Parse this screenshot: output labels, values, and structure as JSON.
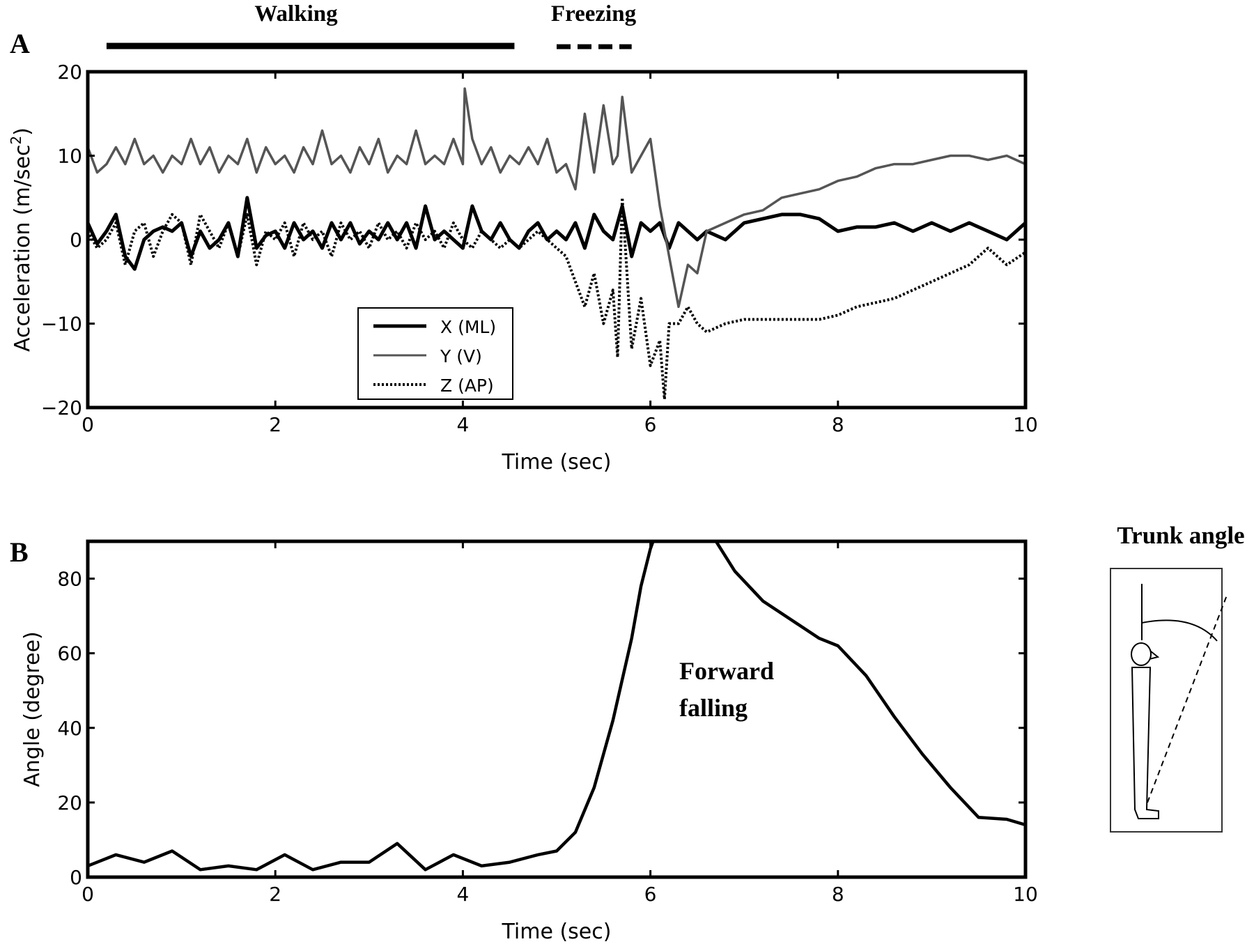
{
  "figure": {
    "phase_labels": {
      "walking": "Walking",
      "freezing": "Freezing"
    },
    "trunk_angle_label": "Trunk angle",
    "annotation": {
      "line1": "Forward",
      "line2": "falling"
    }
  },
  "chart_data": [
    {
      "panel": "A",
      "type": "line",
      "xlabel": "Time (sec)",
      "ylabel": "Acceleration (m/sec",
      "ylabel_superscript": "2",
      "ylabel_close": ")",
      "xlim": [
        0,
        10
      ],
      "ylim": [
        -20,
        20
      ],
      "xticks": [
        0,
        2,
        4,
        6,
        8,
        10
      ],
      "yticks": [
        -20,
        -10,
        0,
        10,
        20
      ],
      "grid": false,
      "legend_position": "bottom-center",
      "phases": [
        {
          "name": "Walking",
          "start": 0.2,
          "end": 4.55,
          "style": "solid"
        },
        {
          "name": "Freezing",
          "start": 5.0,
          "end": 5.8,
          "style": "dashed"
        }
      ],
      "series": [
        {
          "name": "X (ML)",
          "color": "#000000",
          "style": "solid-thick",
          "x": [
            0,
            0.1,
            0.2,
            0.3,
            0.4,
            0.5,
            0.6,
            0.7,
            0.8,
            0.9,
            1.0,
            1.1,
            1.2,
            1.3,
            1.4,
            1.5,
            1.6,
            1.7,
            1.8,
            1.9,
            2.0,
            2.1,
            2.2,
            2.3,
            2.4,
            2.5,
            2.6,
            2.7,
            2.8,
            2.9,
            3.0,
            3.1,
            3.2,
            3.3,
            3.4,
            3.5,
            3.6,
            3.7,
            3.8,
            3.9,
            4.0,
            4.1,
            4.2,
            4.3,
            4.4,
            4.5,
            4.6,
            4.7,
            4.8,
            4.9,
            5.0,
            5.1,
            5.2,
            5.3,
            5.4,
            5.5,
            5.6,
            5.7,
            5.8,
            5.9,
            6.0,
            6.1,
            6.2,
            6.3,
            6.4,
            6.5,
            6.6,
            6.8,
            7.0,
            7.2,
            7.4,
            7.6,
            7.8,
            8.0,
            8.2,
            8.4,
            8.6,
            8.8,
            9.0,
            9.2,
            9.4,
            9.6,
            9.8,
            10.0
          ],
          "values": [
            2,
            -0.5,
            1,
            3,
            -2,
            -3.5,
            0,
            1,
            1.5,
            1,
            2,
            -2,
            1,
            -1,
            0,
            2,
            -2,
            5,
            -1,
            0.5,
            1,
            -1,
            2,
            0,
            1,
            -1,
            2,
            0,
            2,
            -0.5,
            1,
            0,
            2,
            0,
            2,
            -1,
            4,
            0,
            1,
            0,
            -1,
            4,
            1,
            0,
            2,
            0,
            -1,
            1,
            2,
            0,
            1,
            0,
            2,
            -1,
            3,
            1,
            0,
            4,
            -2,
            2,
            1,
            2,
            -1,
            2,
            1,
            0,
            1,
            0,
            2,
            2.5,
            3,
            3,
            2.5,
            1,
            1.5,
            1.5,
            2,
            1,
            2,
            1,
            2,
            1,
            0,
            2
          ]
        },
        {
          "name": "Y (V)",
          "color": "#555555",
          "style": "solid",
          "x": [
            0,
            0.1,
            0.2,
            0.3,
            0.4,
            0.5,
            0.6,
            0.7,
            0.8,
            0.9,
            1.0,
            1.1,
            1.2,
            1.3,
            1.4,
            1.5,
            1.6,
            1.7,
            1.8,
            1.9,
            2.0,
            2.1,
            2.2,
            2.3,
            2.4,
            2.5,
            2.6,
            2.7,
            2.8,
            2.9,
            3.0,
            3.1,
            3.2,
            3.3,
            3.4,
            3.5,
            3.6,
            3.7,
            3.8,
            3.9,
            4.0,
            4.02,
            4.1,
            4.2,
            4.3,
            4.4,
            4.5,
            4.6,
            4.7,
            4.8,
            4.9,
            5.0,
            5.1,
            5.2,
            5.3,
            5.4,
            5.5,
            5.6,
            5.65,
            5.7,
            5.8,
            5.9,
            6.0,
            6.1,
            6.2,
            6.3,
            6.4,
            6.5,
            6.6,
            6.8,
            7.0,
            7.2,
            7.4,
            7.6,
            7.8,
            8.0,
            8.2,
            8.4,
            8.6,
            8.8,
            9.0,
            9.2,
            9.4,
            9.6,
            9.8,
            10.0
          ],
          "values": [
            11,
            8,
            9,
            11,
            9,
            12,
            9,
            10,
            8,
            10,
            9,
            12,
            9,
            11,
            8,
            10,
            9,
            12,
            8,
            11,
            9,
            10,
            8,
            11,
            9,
            13,
            9,
            10,
            8,
            11,
            9,
            12,
            8,
            10,
            9,
            13,
            9,
            10,
            9,
            12,
            9,
            18,
            12,
            9,
            11,
            8,
            10,
            9,
            11,
            9,
            12,
            8,
            9,
            6,
            15,
            8,
            16,
            9,
            10,
            17,
            8,
            10,
            12,
            4,
            -2,
            -8,
            -3,
            -4,
            1,
            2,
            3,
            3.5,
            5,
            5.5,
            6,
            7,
            7.5,
            8.5,
            9,
            9,
            9.5,
            10,
            10,
            9.5,
            10,
            9
          ]
        },
        {
          "name": "Z (AP)",
          "color": "#000000",
          "style": "dotted",
          "x": [
            0,
            0.1,
            0.2,
            0.3,
            0.4,
            0.5,
            0.6,
            0.7,
            0.8,
            0.9,
            1.0,
            1.1,
            1.2,
            1.3,
            1.4,
            1.5,
            1.6,
            1.7,
            1.8,
            1.9,
            2.0,
            2.1,
            2.2,
            2.3,
            2.4,
            2.5,
            2.6,
            2.7,
            2.8,
            2.9,
            3.0,
            3.1,
            3.2,
            3.3,
            3.4,
            3.5,
            3.6,
            3.7,
            3.8,
            3.9,
            4.0,
            4.1,
            4.2,
            4.3,
            4.4,
            4.5,
            4.6,
            4.7,
            4.8,
            4.9,
            5.0,
            5.1,
            5.2,
            5.3,
            5.4,
            5.5,
            5.6,
            5.65,
            5.7,
            5.8,
            5.9,
            6.0,
            6.1,
            6.15,
            6.2,
            6.3,
            6.4,
            6.5,
            6.6,
            6.8,
            7.0,
            7.2,
            7.4,
            7.6,
            7.8,
            8.0,
            8.2,
            8.4,
            8.6,
            8.8,
            9.0,
            9.2,
            9.4,
            9.6,
            9.8,
            10.0
          ],
          "values": [
            1,
            -1,
            0,
            2,
            -3,
            1,
            2,
            -2,
            1,
            3,
            2,
            -3,
            3,
            1,
            -1,
            2,
            -2,
            3,
            -3,
            1,
            0,
            2,
            -2,
            2,
            0,
            1,
            -2,
            2,
            0,
            1,
            -1,
            2,
            0,
            1,
            -1,
            2,
            0,
            1,
            -1,
            2,
            0,
            -1,
            1,
            0,
            -1,
            0,
            -1,
            0,
            1,
            0,
            -1,
            -2,
            -5,
            -8,
            -4,
            -10,
            -6,
            -14,
            5,
            -13,
            -7,
            -15,
            -12,
            -19,
            -10,
            -10,
            -8,
            -10,
            -11,
            -10,
            -9.5,
            -9.5,
            -9.5,
            -9.5,
            -9.5,
            -9,
            -8,
            -7.5,
            -7,
            -6,
            -5,
            -4,
            -3,
            -1,
            -3,
            -1.5
          ]
        }
      ]
    },
    {
      "panel": "B",
      "type": "line",
      "xlabel": "Time (sec)",
      "ylabel": "Angle (degree)",
      "xlim": [
        0,
        10
      ],
      "ylim": [
        0,
        90
      ],
      "xticks": [
        0,
        2,
        4,
        6,
        8,
        10
      ],
      "yticks": [
        0,
        20,
        40,
        60,
        80
      ],
      "grid": false,
      "series": [
        {
          "name": "Trunk angle",
          "color": "#000000",
          "x": [
            0,
            0.3,
            0.6,
            0.9,
            1.2,
            1.5,
            1.8,
            2.1,
            2.4,
            2.7,
            3.0,
            3.3,
            3.6,
            3.9,
            4.2,
            4.5,
            4.8,
            5.0,
            5.2,
            5.4,
            5.6,
            5.8,
            5.9,
            6.0,
            6.1,
            6.2,
            6.5,
            6.7,
            6.9,
            7.2,
            7.5,
            7.8,
            8.0,
            8.3,
            8.6,
            8.9,
            9.2,
            9.5,
            9.8,
            10.0
          ],
          "values": [
            3,
            6,
            4,
            7,
            2,
            3,
            2,
            6,
            2,
            4,
            4,
            9,
            2,
            6,
            3,
            4,
            6,
            7,
            12,
            24,
            42,
            64,
            78,
            88,
            95,
            98,
            95,
            90,
            82,
            74,
            69,
            64,
            62,
            54,
            43,
            33,
            24,
            16,
            15.5,
            14
          ]
        }
      ]
    }
  ]
}
